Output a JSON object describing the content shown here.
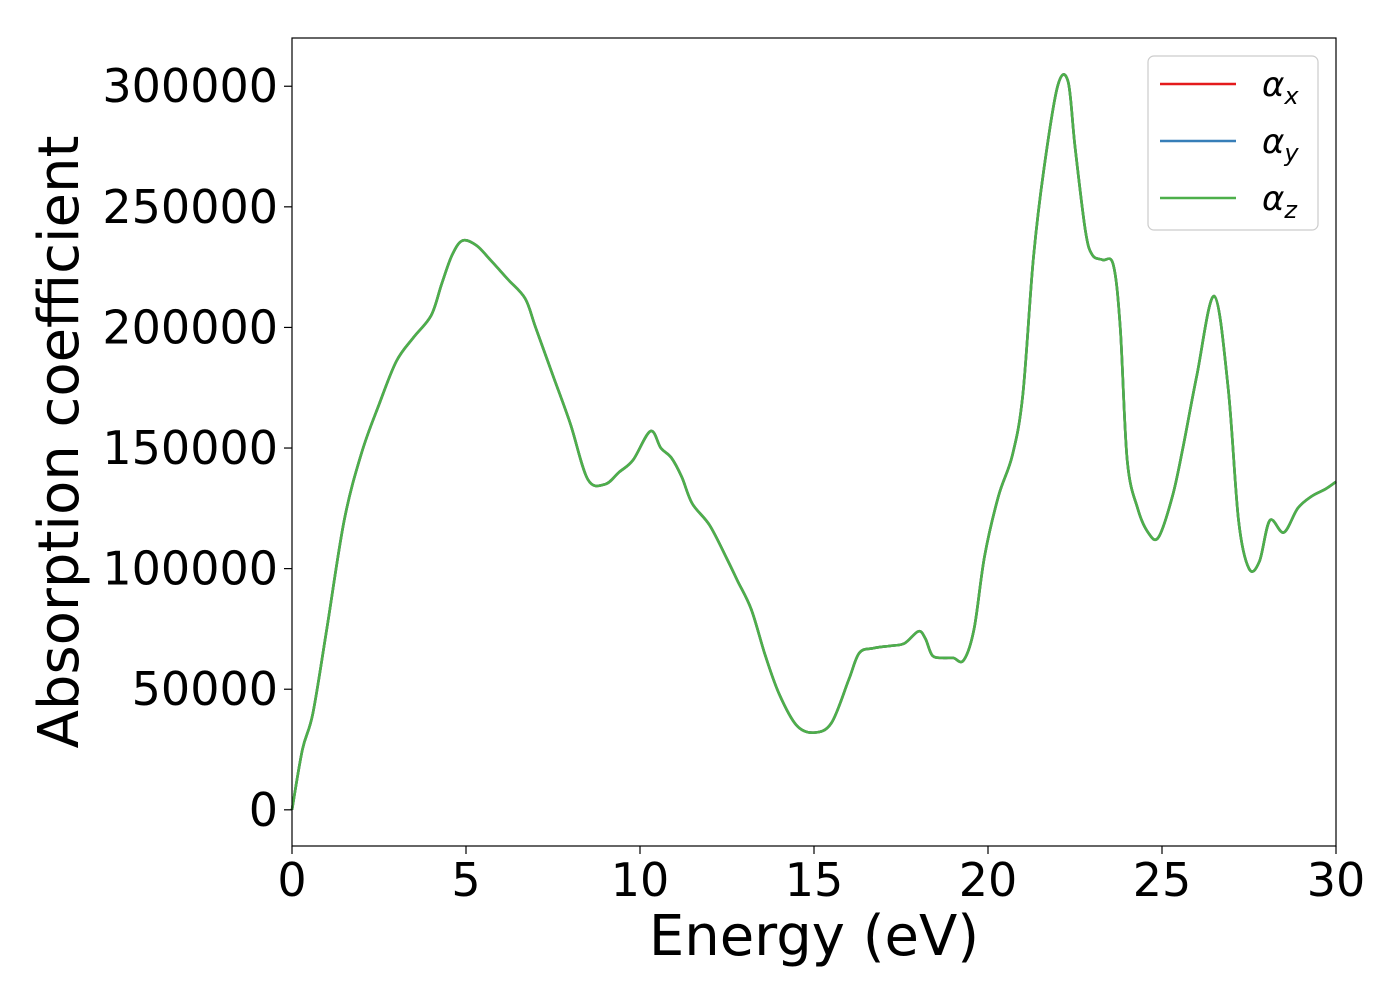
{
  "chart_data": {
    "type": "line",
    "xlabel": "Energy (eV)",
    "ylabel": "Absorption coefficient",
    "xlim": [
      0,
      30
    ],
    "ylim": [
      -15000,
      320000
    ],
    "xticks": [
      0,
      5,
      10,
      15,
      20,
      25,
      30
    ],
    "yticks": [
      0,
      50000,
      100000,
      150000,
      200000,
      250000,
      300000
    ],
    "grid": false,
    "legend_position": "top-right",
    "series": [
      {
        "name": "α",
        "subscript": "x",
        "color": "#e41a1c",
        "x": [
          0,
          0.3,
          0.6,
          1.0,
          1.5,
          2.0,
          2.5,
          3.0,
          3.5,
          4.0,
          4.3,
          4.6,
          4.9,
          5.3,
          5.7,
          6.2,
          6.7,
          7.0,
          7.5,
          8.0,
          8.5,
          9.0,
          9.4,
          9.8,
          10.3,
          10.6,
          10.9,
          11.2,
          11.5,
          12.0,
          12.5,
          12.8,
          13.2,
          13.6,
          14.0,
          14.5,
          15.0,
          15.5,
          16.0,
          16.3,
          16.7,
          17.2,
          17.6,
          18.0,
          18.2,
          18.4,
          18.7,
          19.0,
          19.3,
          19.6,
          19.9,
          20.3,
          20.7,
          21.0,
          21.3,
          21.6,
          22.0,
          22.3,
          22.5,
          22.8,
          23.0,
          23.3,
          23.6,
          23.8,
          24.0,
          24.3,
          24.6,
          24.9,
          25.3,
          25.6,
          26.0,
          26.5,
          26.9,
          27.2,
          27.5,
          27.8,
          28.1,
          28.5,
          28.9,
          29.3,
          29.7,
          30.0
        ],
        "y": [
          0,
          25000,
          40000,
          75000,
          120000,
          148000,
          168000,
          186000,
          196000,
          205000,
          218000,
          230000,
          236000,
          234000,
          228000,
          220000,
          212000,
          200000,
          180000,
          160000,
          137000,
          135000,
          140000,
          145000,
          157000,
          150000,
          146000,
          138000,
          127000,
          118000,
          104000,
          95000,
          83000,
          64000,
          48000,
          35000,
          32000,
          36000,
          54000,
          65000,
          67000,
          68000,
          69000,
          74000,
          71000,
          64000,
          63000,
          63000,
          62000,
          75000,
          105000,
          130000,
          147000,
          172000,
          228000,
          265000,
          300000,
          302000,
          275000,
          240000,
          230000,
          228000,
          226000,
          200000,
          145000,
          125000,
          115000,
          113000,
          130000,
          150000,
          180000,
          213000,
          175000,
          120000,
          100000,
          103000,
          120000,
          115000,
          125000,
          130000,
          133000,
          136000
        ]
      },
      {
        "name": "α",
        "subscript": "y",
        "color": "#377eb8",
        "x": [
          0,
          0.3,
          0.6,
          1.0,
          1.5,
          2.0,
          2.5,
          3.0,
          3.5,
          4.0,
          4.3,
          4.6,
          4.9,
          5.3,
          5.7,
          6.2,
          6.7,
          7.0,
          7.5,
          8.0,
          8.5,
          9.0,
          9.4,
          9.8,
          10.3,
          10.6,
          10.9,
          11.2,
          11.5,
          12.0,
          12.5,
          12.8,
          13.2,
          13.6,
          14.0,
          14.5,
          15.0,
          15.5,
          16.0,
          16.3,
          16.7,
          17.2,
          17.6,
          18.0,
          18.2,
          18.4,
          18.7,
          19.0,
          19.3,
          19.6,
          19.9,
          20.3,
          20.7,
          21.0,
          21.3,
          21.6,
          22.0,
          22.3,
          22.5,
          22.8,
          23.0,
          23.3,
          23.6,
          23.8,
          24.0,
          24.3,
          24.6,
          24.9,
          25.3,
          25.6,
          26.0,
          26.5,
          26.9,
          27.2,
          27.5,
          27.8,
          28.1,
          28.5,
          28.9,
          29.3,
          29.7,
          30.0
        ],
        "y": [
          0,
          25000,
          40000,
          75000,
          120000,
          148000,
          168000,
          186000,
          196000,
          205000,
          218000,
          230000,
          236000,
          234000,
          228000,
          220000,
          212000,
          200000,
          180000,
          160000,
          137000,
          135000,
          140000,
          145000,
          157000,
          150000,
          146000,
          138000,
          127000,
          118000,
          104000,
          95000,
          83000,
          64000,
          48000,
          35000,
          32000,
          36000,
          54000,
          65000,
          67000,
          68000,
          69000,
          74000,
          71000,
          64000,
          63000,
          63000,
          62000,
          75000,
          105000,
          130000,
          147000,
          172000,
          228000,
          265000,
          300000,
          302000,
          275000,
          240000,
          230000,
          228000,
          226000,
          200000,
          145000,
          125000,
          115000,
          113000,
          130000,
          150000,
          180000,
          213000,
          175000,
          120000,
          100000,
          103000,
          120000,
          115000,
          125000,
          130000,
          133000,
          136000
        ]
      },
      {
        "name": "α",
        "subscript": "z",
        "color": "#4daf4a",
        "x": [
          0,
          0.3,
          0.6,
          1.0,
          1.5,
          2.0,
          2.5,
          3.0,
          3.5,
          4.0,
          4.3,
          4.6,
          4.9,
          5.3,
          5.7,
          6.2,
          6.7,
          7.0,
          7.5,
          8.0,
          8.5,
          9.0,
          9.4,
          9.8,
          10.3,
          10.6,
          10.9,
          11.2,
          11.5,
          12.0,
          12.5,
          12.8,
          13.2,
          13.6,
          14.0,
          14.5,
          15.0,
          15.5,
          16.0,
          16.3,
          16.7,
          17.2,
          17.6,
          18.0,
          18.2,
          18.4,
          18.7,
          19.0,
          19.3,
          19.6,
          19.9,
          20.3,
          20.7,
          21.0,
          21.3,
          21.6,
          22.0,
          22.3,
          22.5,
          22.8,
          23.0,
          23.3,
          23.6,
          23.8,
          24.0,
          24.3,
          24.6,
          24.9,
          25.3,
          25.6,
          26.0,
          26.5,
          26.9,
          27.2,
          27.5,
          27.8,
          28.1,
          28.5,
          28.9,
          29.3,
          29.7,
          30.0
        ],
        "y": [
          0,
          25000,
          40000,
          75000,
          120000,
          148000,
          168000,
          186000,
          196000,
          205000,
          218000,
          230000,
          236000,
          234000,
          228000,
          220000,
          212000,
          200000,
          180000,
          160000,
          137000,
          135000,
          140000,
          145000,
          157000,
          150000,
          146000,
          138000,
          127000,
          118000,
          104000,
          95000,
          83000,
          64000,
          48000,
          35000,
          32000,
          36000,
          54000,
          65000,
          67000,
          68000,
          69000,
          74000,
          71000,
          64000,
          63000,
          63000,
          62000,
          75000,
          105000,
          130000,
          147000,
          172000,
          228000,
          265000,
          300000,
          302000,
          275000,
          240000,
          230000,
          228000,
          226000,
          200000,
          145000,
          125000,
          115000,
          113000,
          130000,
          150000,
          180000,
          213000,
          175000,
          120000,
          100000,
          103000,
          120000,
          115000,
          125000,
          130000,
          133000,
          136000
        ]
      }
    ]
  }
}
